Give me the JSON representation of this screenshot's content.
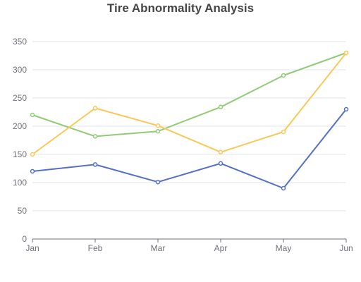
{
  "chart_data": {
    "type": "line",
    "title": "Tire Abnormality Analysis",
    "categories": [
      "Jan",
      "Feb",
      "Mar",
      "Apr",
      "May",
      "Jun"
    ],
    "series": [
      {
        "color": "#5470c6",
        "values": [
          120,
          132,
          101,
          134,
          90,
          230
        ]
      },
      {
        "color": "#91cc75",
        "values": [
          220,
          182,
          191,
          234,
          290,
          330
        ]
      },
      {
        "color": "#fac858",
        "values": [
          150,
          232,
          201,
          154,
          190,
          330
        ]
      }
    ],
    "ylim": [
      0,
      350
    ],
    "yticks": [
      0,
      50,
      100,
      150,
      200,
      250,
      300,
      350
    ],
    "grid": true,
    "legend": "none"
  }
}
